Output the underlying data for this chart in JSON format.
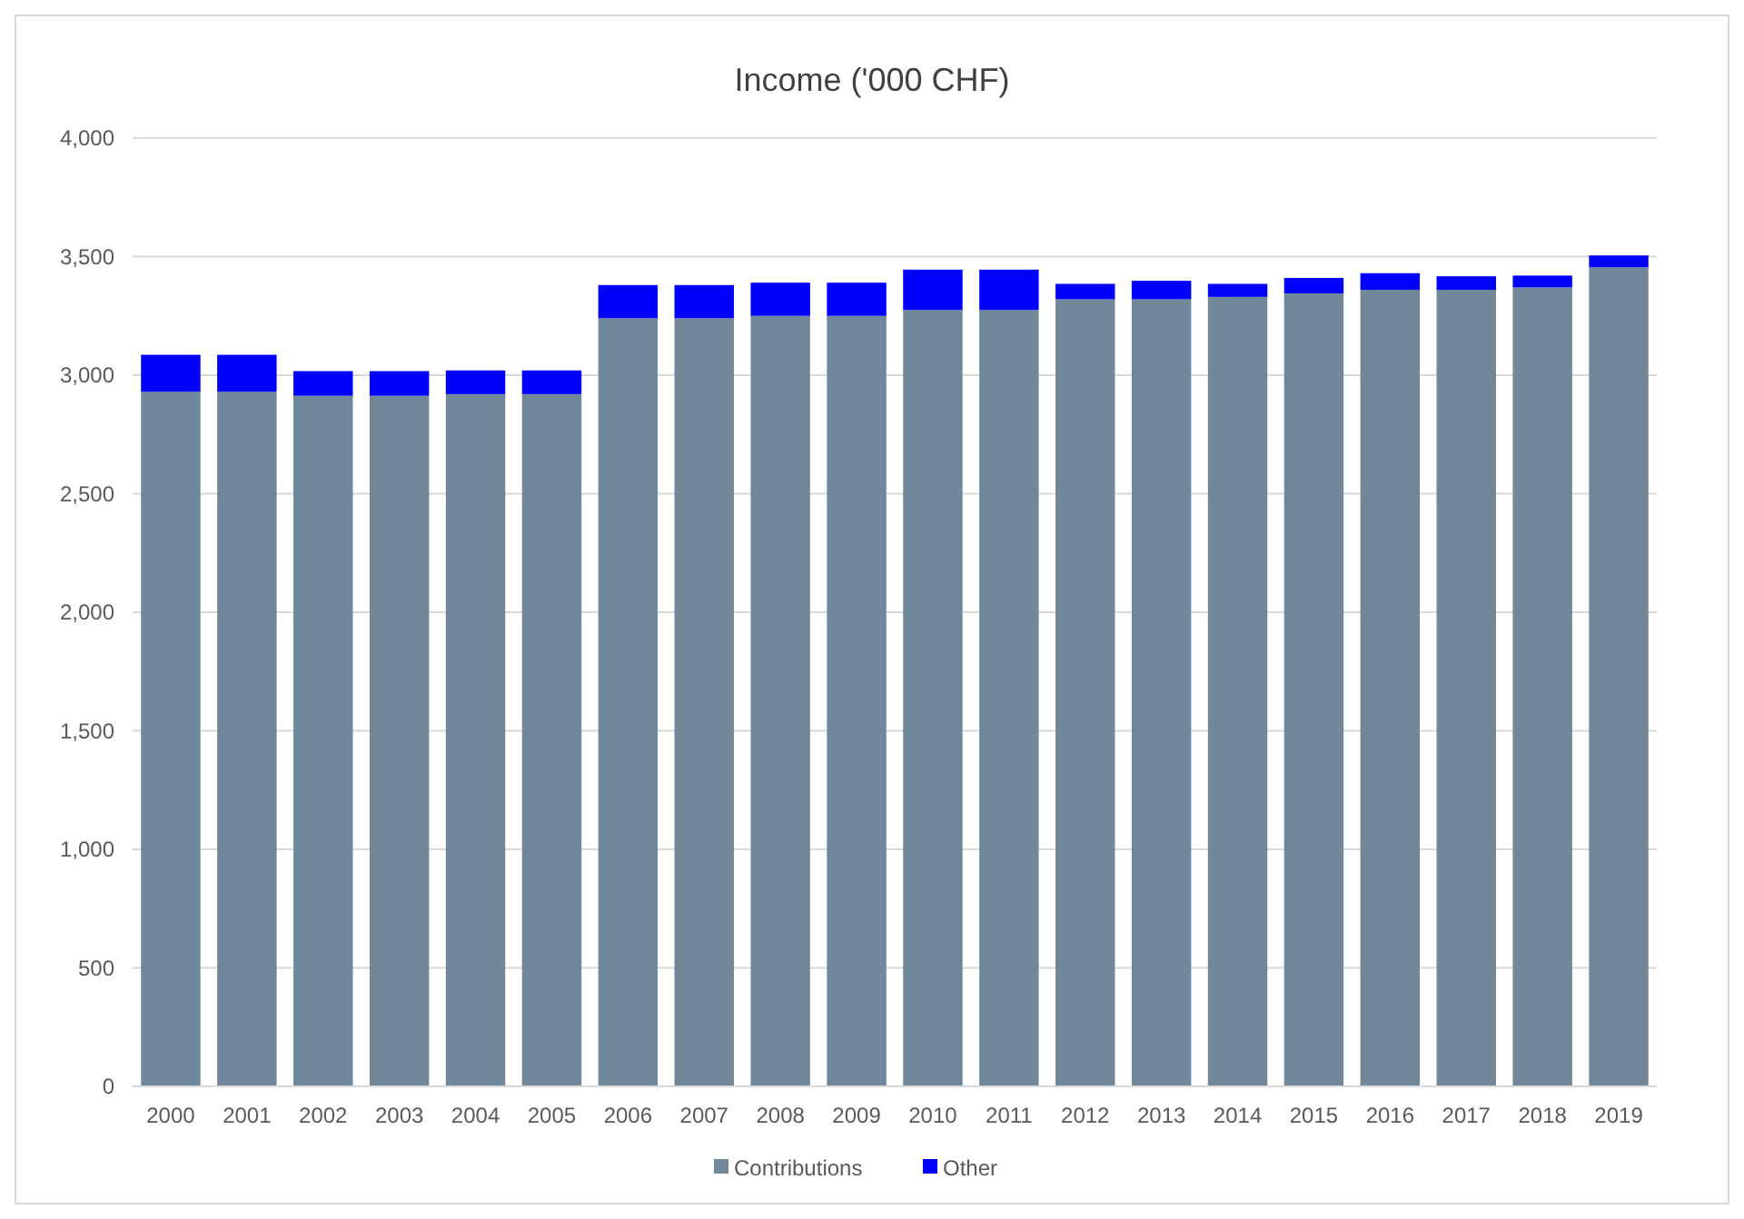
{
  "chart_data": {
    "type": "bar",
    "title": "Income ('000 CHF)",
    "stacked": true,
    "categories": [
      "2000",
      "2001",
      "2002",
      "2003",
      "2004",
      "2005",
      "2006",
      "2007",
      "2008",
      "2009",
      "2010",
      "2011",
      "2012",
      "2013",
      "2014",
      "2015",
      "2016",
      "2017",
      "2018",
      "2019"
    ],
    "series": [
      {
        "name": "Contributions",
        "color": "#708899",
        "values": [
          2930,
          2930,
          2913,
          2913,
          2920,
          2920,
          3240,
          3240,
          3250,
          3250,
          3275,
          3275,
          3320,
          3320,
          3330,
          3345,
          3360,
          3360,
          3370,
          3455
        ]
      },
      {
        "name": "Other",
        "color": "#0000ff",
        "values": [
          156,
          156,
          104,
          104,
          100,
          100,
          140,
          140,
          140,
          140,
          170,
          170,
          65,
          78,
          55,
          65,
          70,
          57,
          50,
          50
        ]
      }
    ],
    "ylim": [
      0,
      4000
    ],
    "yticks": [
      {
        "value": 0,
        "label": "0"
      },
      {
        "value": 500,
        "label": "500"
      },
      {
        "value": 1000,
        "label": "1,000"
      },
      {
        "value": 1500,
        "label": "1,500"
      },
      {
        "value": 2000,
        "label": "2,000"
      },
      {
        "value": 2500,
        "label": "2,500"
      },
      {
        "value": 3000,
        "label": "3,000"
      },
      {
        "value": 3500,
        "label": "3,500"
      },
      {
        "value": 4000,
        "label": "4,000"
      }
    ],
    "grid": "y",
    "legend": "bottom"
  }
}
